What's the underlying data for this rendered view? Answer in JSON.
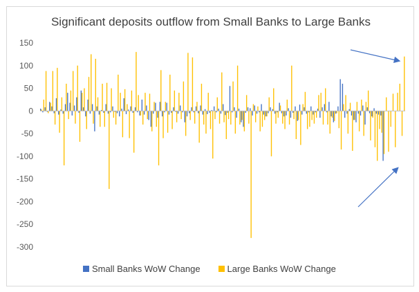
{
  "chart_data": {
    "type": "bar",
    "title": "Significant deposits outflow from Small Banks to Large Banks",
    "xlabel": "",
    "ylabel": "",
    "ylim": [
      -300,
      150
    ],
    "yticks": [
      150,
      100,
      50,
      0,
      -50,
      -100,
      -150,
      -200,
      -250,
      -300
    ],
    "legend_position": "bottom",
    "grid": false,
    "series": [
      {
        "name": "Small Banks WoW Change",
        "color": "#4472c4",
        "values": [
          5,
          -3,
          8,
          -2,
          20,
          10,
          -5,
          28,
          -8,
          3,
          -6,
          15,
          40,
          18,
          -10,
          12,
          30,
          -4,
          45,
          8,
          -12,
          25,
          -6,
          15,
          -45,
          10,
          -8,
          2,
          -4,
          15,
          -6,
          -3,
          10,
          -2,
          -5,
          -12,
          5,
          28,
          -7,
          3,
          10,
          -4,
          8,
          -3,
          -10,
          25,
          -8,
          12,
          -20,
          -35,
          -6,
          18,
          -15,
          20,
          -12,
          -3,
          18,
          -8,
          -4,
          8,
          -2,
          -6,
          12,
          -3,
          -25,
          -12,
          -5,
          8,
          -3,
          10,
          -5,
          12,
          -8,
          4,
          -7,
          -4,
          2,
          10,
          -3,
          5,
          -6,
          15,
          -9,
          -4,
          55,
          -3,
          8,
          -15,
          5,
          -25,
          -35,
          -4,
          8,
          6,
          -10,
          12,
          -6,
          -3,
          15,
          -8,
          -12,
          -5,
          8,
          4,
          -6,
          -3,
          18,
          -5,
          -12,
          -10,
          6,
          -15,
          -4,
          10,
          -22,
          14,
          -8,
          8,
          -6,
          -3,
          10,
          -8,
          -3,
          5,
          -15,
          8,
          15,
          -3,
          20,
          -12,
          -25,
          -6,
          10,
          70,
          60,
          -15,
          -6,
          4,
          -10,
          -20,
          -25,
          -6,
          -10,
          12,
          -30,
          8,
          -5,
          -12,
          6,
          -6,
          -8,
          -10,
          -110
        ]
      },
      {
        "name": "Large Banks WoW Change",
        "color": "#ffc000",
        "values": [
          3,
          25,
          88,
          -5,
          18,
          88,
          -30,
          95,
          -48,
          30,
          -120,
          60,
          -18,
          45,
          88,
          -28,
          100,
          -68,
          40,
          50,
          -40,
          75,
          125,
          -28,
          115,
          30,
          -35,
          60,
          -35,
          62,
          -172,
          50,
          -15,
          -30,
          80,
          40,
          -58,
          48,
          15,
          -60,
          45,
          -92,
          130,
          35,
          -10,
          -30,
          40,
          -18,
          38,
          -45,
          20,
          -35,
          -120,
          90,
          -60,
          20,
          -48,
          80,
          -40,
          45,
          -25,
          40,
          -18,
          65,
          -55,
          128,
          -20,
          118,
          -28,
          20,
          -70,
          60,
          -30,
          -50,
          40,
          -40,
          -105,
          -18,
          30,
          -28,
          85,
          -25,
          -62,
          -18,
          -30,
          65,
          -50,
          100,
          -30,
          -20,
          -45,
          35,
          -28,
          -280,
          15,
          -25,
          10,
          -45,
          -35,
          -20,
          -12,
          30,
          -100,
          50,
          -28,
          -15,
          12,
          -28,
          -40,
          25,
          -30,
          100,
          -18,
          -62,
          -20,
          -75,
          15,
          42,
          -40,
          -35,
          -20,
          -28,
          -15,
          35,
          40,
          -30,
          50,
          -30,
          -50,
          -15,
          -22,
          -5,
          -38,
          -85,
          15,
          35,
          -50,
          18,
          -88,
          -20,
          20,
          -45,
          25,
          -55,
          20,
          45,
          -65,
          -15,
          -80,
          -110,
          -40,
          -48,
          -95,
          30,
          -90,
          -35,
          38,
          -80,
          40,
          60,
          -55,
          120
        ]
      }
    ]
  }
}
